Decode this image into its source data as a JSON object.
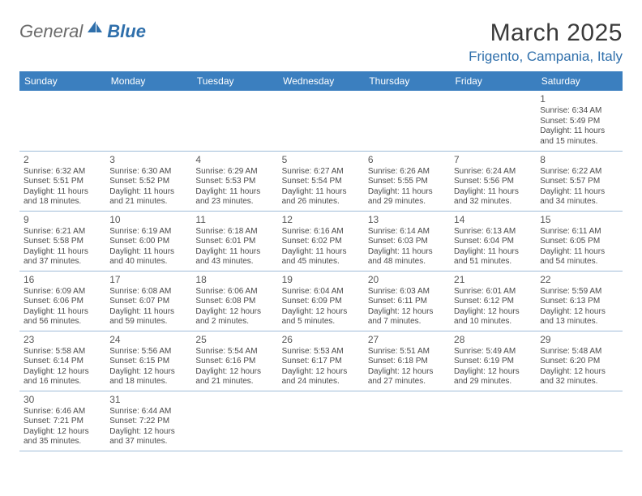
{
  "logo": {
    "general": "General",
    "blue": "Blue"
  },
  "title": "March 2025",
  "location": "Frigento, Campania, Italy",
  "day_headers": [
    "Sunday",
    "Monday",
    "Tuesday",
    "Wednesday",
    "Thursday",
    "Friday",
    "Saturday"
  ],
  "colors": {
    "header_bg": "#3b7fbf",
    "header_fg": "#ffffff",
    "border": "#9fbcd8",
    "title_fg": "#3a3a3a",
    "location_fg": "#2f6fab",
    "text_fg": "#4a4a4a"
  },
  "weeks": [
    [
      null,
      null,
      null,
      null,
      null,
      null,
      {
        "n": "1",
        "sr": "6:34 AM",
        "ss": "5:49 PM",
        "dl": "11 hours and 15 minutes."
      }
    ],
    [
      {
        "n": "2",
        "sr": "6:32 AM",
        "ss": "5:51 PM",
        "dl": "11 hours and 18 minutes."
      },
      {
        "n": "3",
        "sr": "6:30 AM",
        "ss": "5:52 PM",
        "dl": "11 hours and 21 minutes."
      },
      {
        "n": "4",
        "sr": "6:29 AM",
        "ss": "5:53 PM",
        "dl": "11 hours and 23 minutes."
      },
      {
        "n": "5",
        "sr": "6:27 AM",
        "ss": "5:54 PM",
        "dl": "11 hours and 26 minutes."
      },
      {
        "n": "6",
        "sr": "6:26 AM",
        "ss": "5:55 PM",
        "dl": "11 hours and 29 minutes."
      },
      {
        "n": "7",
        "sr": "6:24 AM",
        "ss": "5:56 PM",
        "dl": "11 hours and 32 minutes."
      },
      {
        "n": "8",
        "sr": "6:22 AM",
        "ss": "5:57 PM",
        "dl": "11 hours and 34 minutes."
      }
    ],
    [
      {
        "n": "9",
        "sr": "6:21 AM",
        "ss": "5:58 PM",
        "dl": "11 hours and 37 minutes."
      },
      {
        "n": "10",
        "sr": "6:19 AM",
        "ss": "6:00 PM",
        "dl": "11 hours and 40 minutes."
      },
      {
        "n": "11",
        "sr": "6:18 AM",
        "ss": "6:01 PM",
        "dl": "11 hours and 43 minutes."
      },
      {
        "n": "12",
        "sr": "6:16 AM",
        "ss": "6:02 PM",
        "dl": "11 hours and 45 minutes."
      },
      {
        "n": "13",
        "sr": "6:14 AM",
        "ss": "6:03 PM",
        "dl": "11 hours and 48 minutes."
      },
      {
        "n": "14",
        "sr": "6:13 AM",
        "ss": "6:04 PM",
        "dl": "11 hours and 51 minutes."
      },
      {
        "n": "15",
        "sr": "6:11 AM",
        "ss": "6:05 PM",
        "dl": "11 hours and 54 minutes."
      }
    ],
    [
      {
        "n": "16",
        "sr": "6:09 AM",
        "ss": "6:06 PM",
        "dl": "11 hours and 56 minutes."
      },
      {
        "n": "17",
        "sr": "6:08 AM",
        "ss": "6:07 PM",
        "dl": "11 hours and 59 minutes."
      },
      {
        "n": "18",
        "sr": "6:06 AM",
        "ss": "6:08 PM",
        "dl": "12 hours and 2 minutes."
      },
      {
        "n": "19",
        "sr": "6:04 AM",
        "ss": "6:09 PM",
        "dl": "12 hours and 5 minutes."
      },
      {
        "n": "20",
        "sr": "6:03 AM",
        "ss": "6:11 PM",
        "dl": "12 hours and 7 minutes."
      },
      {
        "n": "21",
        "sr": "6:01 AM",
        "ss": "6:12 PM",
        "dl": "12 hours and 10 minutes."
      },
      {
        "n": "22",
        "sr": "5:59 AM",
        "ss": "6:13 PM",
        "dl": "12 hours and 13 minutes."
      }
    ],
    [
      {
        "n": "23",
        "sr": "5:58 AM",
        "ss": "6:14 PM",
        "dl": "12 hours and 16 minutes."
      },
      {
        "n": "24",
        "sr": "5:56 AM",
        "ss": "6:15 PM",
        "dl": "12 hours and 18 minutes."
      },
      {
        "n": "25",
        "sr": "5:54 AM",
        "ss": "6:16 PM",
        "dl": "12 hours and 21 minutes."
      },
      {
        "n": "26",
        "sr": "5:53 AM",
        "ss": "6:17 PM",
        "dl": "12 hours and 24 minutes."
      },
      {
        "n": "27",
        "sr": "5:51 AM",
        "ss": "6:18 PM",
        "dl": "12 hours and 27 minutes."
      },
      {
        "n": "28",
        "sr": "5:49 AM",
        "ss": "6:19 PM",
        "dl": "12 hours and 29 minutes."
      },
      {
        "n": "29",
        "sr": "5:48 AM",
        "ss": "6:20 PM",
        "dl": "12 hours and 32 minutes."
      }
    ],
    [
      {
        "n": "30",
        "sr": "6:46 AM",
        "ss": "7:21 PM",
        "dl": "12 hours and 35 minutes."
      },
      {
        "n": "31",
        "sr": "6:44 AM",
        "ss": "7:22 PM",
        "dl": "12 hours and 37 minutes."
      },
      null,
      null,
      null,
      null,
      null
    ]
  ],
  "labels": {
    "sunrise": "Sunrise:",
    "sunset": "Sunset:",
    "daylight": "Daylight:"
  }
}
